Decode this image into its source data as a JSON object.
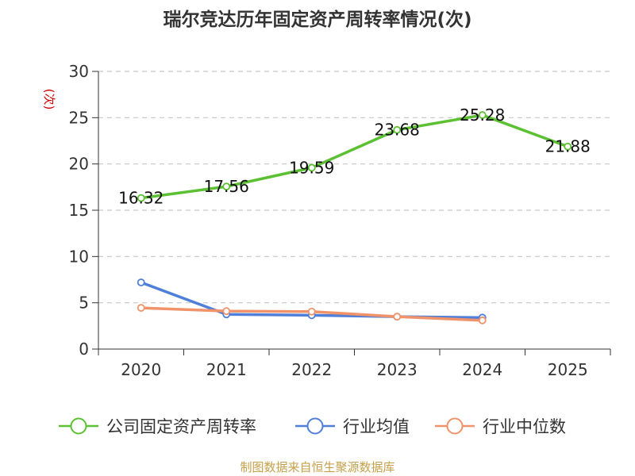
{
  "chart_data": {
    "type": "line",
    "title": "瑞尔竞达历年固定资产周转率情况(次)",
    "ylabel": "(次)",
    "xlabel": "",
    "ylim": [
      0,
      30
    ],
    "yticks": [
      0,
      5,
      10,
      15,
      20,
      25,
      30
    ],
    "categories": [
      "2020",
      "2021",
      "2022",
      "2023",
      "2024",
      "2025"
    ],
    "grid": true,
    "legend_position": "bottom",
    "series": [
      {
        "name": "公司固定资产周转率",
        "color": "#5cc132",
        "values": [
          16.32,
          17.56,
          19.59,
          23.68,
          25.28,
          21.88
        ],
        "show_labels": true
      },
      {
        "name": "行业均值",
        "color": "#4f7fd8",
        "values": [
          7.2,
          3.75,
          3.65,
          3.5,
          3.4,
          null
        ],
        "show_labels": false
      },
      {
        "name": "行业中位数",
        "color": "#f0936a",
        "values": [
          4.45,
          4.1,
          4.05,
          3.5,
          3.1,
          null
        ],
        "show_labels": false
      }
    ]
  },
  "footer": {
    "source": "制图数据来自恒生聚源数据库"
  }
}
